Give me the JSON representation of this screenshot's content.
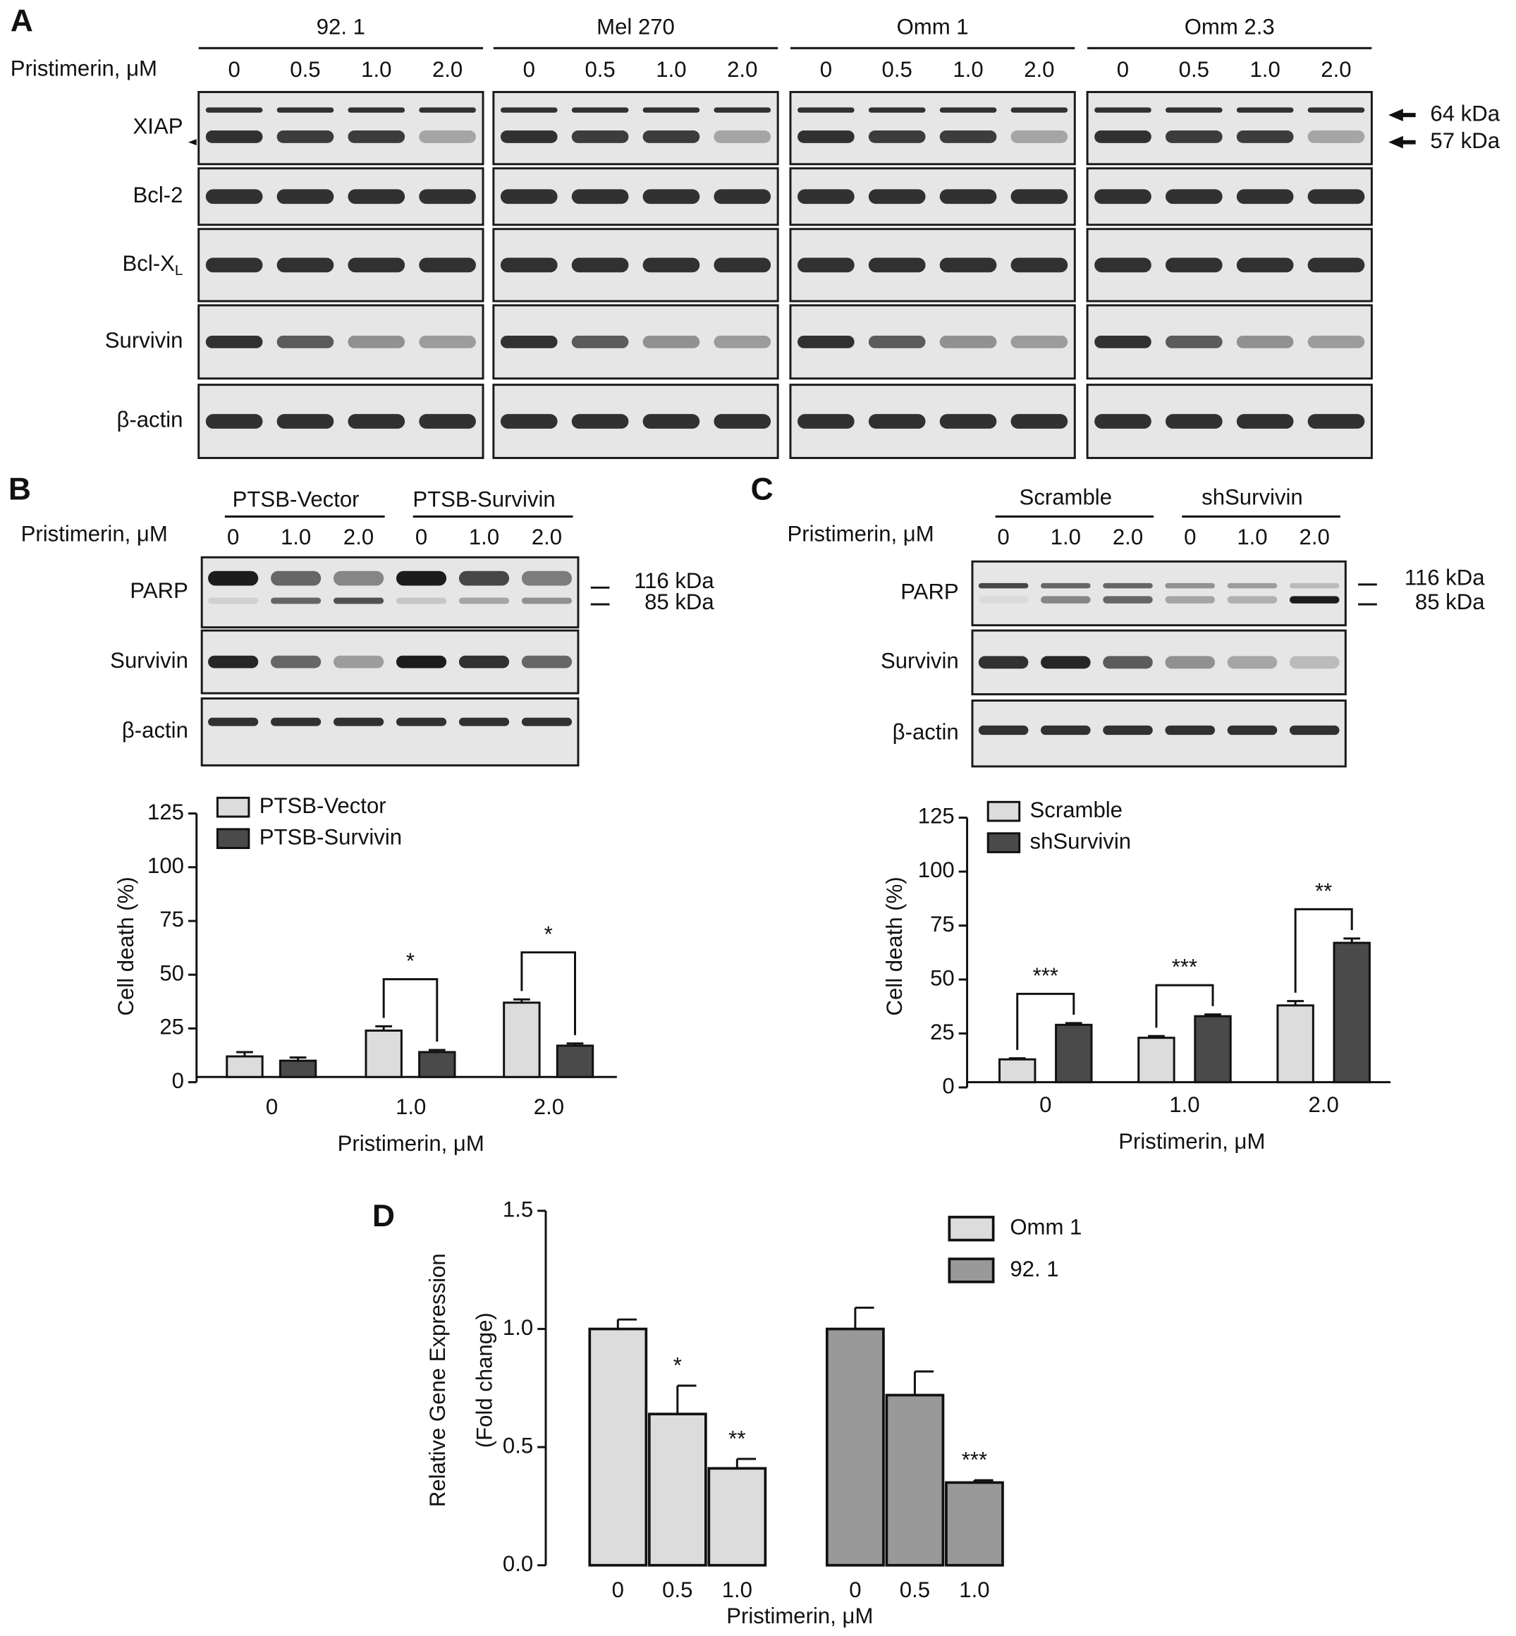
{
  "panel_labels": [
    "A",
    "B",
    "C",
    "D"
  ],
  "blot_a": {
    "cell_lines": [
      "92. 1",
      "Mel 270",
      "Omm 1",
      "Omm 2.3"
    ],
    "treatment_label": "Pristimerin, μM",
    "doses": [
      "0",
      "0.5",
      "1.0",
      "2.0"
    ],
    "proteins": [
      "XIAP",
      "Bcl-2",
      "Bcl-X",
      "Survivin",
      "β-actin"
    ],
    "protein_subscripts": [
      null,
      null,
      "L",
      null,
      null
    ],
    "markers": [
      "64 kDa",
      "57 kDa"
    ]
  },
  "blot_b": {
    "groups": [
      "PTSB-Vector",
      "PTSB-Survivin"
    ],
    "treatment_label": "Pristimerin, μM",
    "doses": [
      "0",
      "1.0",
      "2.0"
    ],
    "proteins": [
      "PARP",
      "Survivin",
      "β-actin"
    ],
    "markers": [
      "116 kDa",
      "85 kDa"
    ]
  },
  "blot_c": {
    "groups": [
      "Scramble",
      "shSurvivin"
    ],
    "treatment_label": "Pristimerin, μM",
    "doses": [
      "0",
      "1.0",
      "2.0"
    ],
    "proteins": [
      "PARP",
      "Survivin",
      "β-actin"
    ],
    "markers": [
      "116 kDa",
      "85 kDa"
    ]
  },
  "chart_data": [
    {
      "type": "bar",
      "categories": [
        "0",
        "1.0",
        "2.0"
      ],
      "xlabel": "Pristimerin, μM",
      "ylabel": "Cell death (%)",
      "ylim": [
        0,
        125
      ],
      "yticks": [
        0,
        25,
        50,
        75,
        100,
        125
      ],
      "series": [
        {
          "name": "PTSB-Vector",
          "color": "#dcdcdc",
          "values": [
            12,
            24,
            37
          ],
          "errors": [
            2,
            2,
            1.5
          ]
        },
        {
          "name": "PTSB-Survivin",
          "color": "#4a4a4a",
          "values": [
            10,
            14,
            17
          ],
          "errors": [
            1.5,
            1,
            1
          ]
        }
      ],
      "significance": [
        null,
        "*",
        "*"
      ]
    },
    {
      "type": "bar",
      "categories": [
        "0",
        "1.0",
        "2.0"
      ],
      "xlabel": "Pristimerin, μM",
      "ylabel": "Cell death (%)",
      "ylim": [
        0,
        125
      ],
      "yticks": [
        0,
        25,
        50,
        75,
        100,
        125
      ],
      "series": [
        {
          "name": "Scramble",
          "color": "#dcdcdc",
          "values": [
            13,
            23,
            38
          ],
          "errors": [
            0.5,
            0.8,
            2
          ]
        },
        {
          "name": "shSurvivin",
          "color": "#4a4a4a",
          "values": [
            29,
            33,
            67
          ],
          "errors": [
            0.8,
            0.8,
            2
          ]
        }
      ],
      "significance": [
        "***",
        "***",
        "**"
      ]
    },
    {
      "type": "bar",
      "group_by": "series",
      "categories": [
        "0",
        "0.5",
        "1.0"
      ],
      "xlabel": "Pristimerin, μM",
      "ylabel": [
        "Relative Gene Expression",
        "(Fold change)"
      ],
      "ylim": [
        0,
        1.5
      ],
      "yticks": [
        {
          "value": 0,
          "label": "0.0"
        },
        {
          "value": 0.5,
          "label": "0.5"
        },
        {
          "value": 1,
          "label": "1.0"
        },
        {
          "value": 1.5,
          "label": "1.5"
        }
      ],
      "series": [
        {
          "name": "Omm 1",
          "color": "#dcdcdc",
          "values": [
            1.0,
            0.64,
            0.41
          ],
          "errors": [
            0.04,
            0.12,
            0.04
          ],
          "significance": [
            null,
            "*",
            "**"
          ]
        },
        {
          "name": "92. 1",
          "color": "#999999",
          "values": [
            1.0,
            0.72,
            0.35
          ],
          "errors": [
            0.09,
            0.1,
            0.01
          ],
          "significance": [
            null,
            null,
            "***"
          ]
        }
      ]
    }
  ]
}
